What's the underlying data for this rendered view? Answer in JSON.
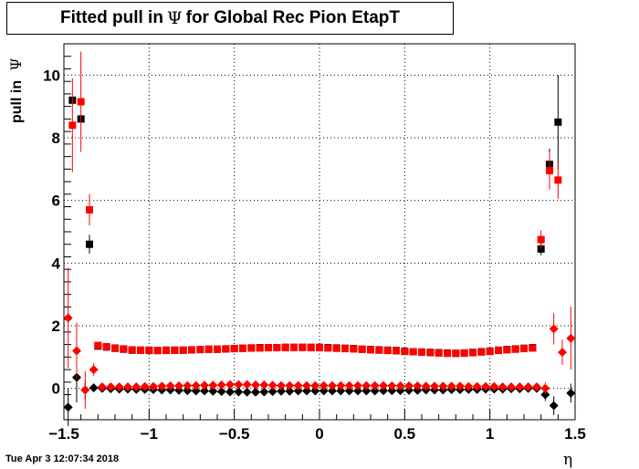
{
  "chart_data": {
    "type": "scatter",
    "title_prefix": "Fitted pull in",
    "title_symbol": "Ψ",
    "title_suffix": "for Global Rec Pion EtapT",
    "ylabel_prefix": "pull in",
    "ylabel_symbol": "Ψ",
    "xlabel": "η",
    "xlim": [
      -1.5,
      1.5
    ],
    "ylim": [
      -1.0,
      11.0
    ],
    "x_ticks": [
      -1.5,
      -1,
      -0.5,
      0,
      0.5,
      1,
      1.5
    ],
    "x_tick_labels": [
      "−1.5",
      "−1",
      "−0.5",
      "0",
      "0.5",
      "1",
      "1.5"
    ],
    "y_ticks": [
      0,
      2,
      4,
      6,
      8,
      10
    ],
    "y_tick_labels": [
      "0",
      "2",
      "4",
      "6",
      "8",
      "10"
    ],
    "grid": true,
    "timestamp": "Tue Apr  3 12:07:34 2018",
    "series": [
      {
        "color": "#000000",
        "marker": "square",
        "points": [
          [
            -1.45,
            9.2,
            0.0
          ],
          [
            -1.4,
            8.6,
            0.0
          ],
          [
            -1.35,
            4.6,
            0.3
          ],
          [
            -1.3,
            1.35,
            0.03
          ],
          [
            -1.25,
            1.32,
            0.03
          ],
          [
            -1.2,
            1.28,
            0.03
          ],
          [
            -1.15,
            1.25,
            0.03
          ],
          [
            -1.1,
            1.22,
            0.03
          ],
          [
            -1.05,
            1.22,
            0.03
          ],
          [
            -1.0,
            1.22,
            0.03
          ],
          [
            -0.95,
            1.21,
            0.03
          ],
          [
            -0.9,
            1.22,
            0.03
          ],
          [
            -0.85,
            1.22,
            0.03
          ],
          [
            -0.8,
            1.22,
            0.03
          ],
          [
            -0.75,
            1.23,
            0.03
          ],
          [
            -0.7,
            1.24,
            0.03
          ],
          [
            -0.65,
            1.25,
            0.03
          ],
          [
            -0.6,
            1.25,
            0.03
          ],
          [
            -0.55,
            1.26,
            0.03
          ],
          [
            -0.5,
            1.27,
            0.03
          ],
          [
            -0.45,
            1.28,
            0.03
          ],
          [
            -0.4,
            1.29,
            0.03
          ],
          [
            -0.35,
            1.3,
            0.03
          ],
          [
            -0.3,
            1.3,
            0.03
          ],
          [
            -0.25,
            1.3,
            0.03
          ],
          [
            -0.2,
            1.31,
            0.03
          ],
          [
            -0.15,
            1.31,
            0.03
          ],
          [
            -0.1,
            1.31,
            0.03
          ],
          [
            -0.05,
            1.31,
            0.03
          ],
          [
            0.0,
            1.31,
            0.03
          ],
          [
            0.05,
            1.3,
            0.03
          ],
          [
            0.1,
            1.29,
            0.03
          ],
          [
            0.15,
            1.28,
            0.03
          ],
          [
            0.2,
            1.27,
            0.03
          ],
          [
            0.25,
            1.25,
            0.03
          ],
          [
            0.3,
            1.24,
            0.03
          ],
          [
            0.35,
            1.23,
            0.03
          ],
          [
            0.4,
            1.22,
            0.03
          ],
          [
            0.45,
            1.21,
            0.03
          ],
          [
            0.5,
            1.19,
            0.03
          ],
          [
            0.55,
            1.17,
            0.03
          ],
          [
            0.6,
            1.16,
            0.03
          ],
          [
            0.65,
            1.15,
            0.03
          ],
          [
            0.7,
            1.14,
            0.03
          ],
          [
            0.75,
            1.13,
            0.03
          ],
          [
            0.8,
            1.12,
            0.03
          ],
          [
            0.85,
            1.13,
            0.03
          ],
          [
            0.9,
            1.15,
            0.03
          ],
          [
            0.95,
            1.17,
            0.03
          ],
          [
            1.0,
            1.19,
            0.03
          ],
          [
            1.05,
            1.22,
            0.03
          ],
          [
            1.1,
            1.24,
            0.03
          ],
          [
            1.15,
            1.26,
            0.03
          ],
          [
            1.2,
            1.28,
            0.03
          ],
          [
            1.25,
            1.3,
            0.03
          ],
          [
            1.3,
            4.45,
            0.2
          ],
          [
            1.35,
            7.15,
            0.5
          ],
          [
            1.4,
            8.5,
            1.5
          ]
        ]
      },
      {
        "color": "#ff0000",
        "marker": "square",
        "points": [
          [
            -1.45,
            8.4,
            1.5
          ],
          [
            -1.4,
            9.15,
            1.6
          ],
          [
            -1.35,
            5.7,
            0.5
          ],
          [
            -1.3,
            1.37,
            0.03
          ],
          [
            -1.25,
            1.33,
            0.03
          ],
          [
            -1.2,
            1.29,
            0.03
          ],
          [
            -1.15,
            1.26,
            0.03
          ],
          [
            -1.1,
            1.23,
            0.03
          ],
          [
            -1.05,
            1.22,
            0.03
          ],
          [
            -1.0,
            1.21,
            0.03
          ],
          [
            -0.95,
            1.21,
            0.03
          ],
          [
            -0.9,
            1.21,
            0.03
          ],
          [
            -0.85,
            1.22,
            0.03
          ],
          [
            -0.8,
            1.22,
            0.03
          ],
          [
            -0.75,
            1.23,
            0.03
          ],
          [
            -0.7,
            1.24,
            0.03
          ],
          [
            -0.65,
            1.25,
            0.03
          ],
          [
            -0.6,
            1.25,
            0.03
          ],
          [
            -0.55,
            1.26,
            0.03
          ],
          [
            -0.5,
            1.27,
            0.03
          ],
          [
            -0.45,
            1.28,
            0.03
          ],
          [
            -0.4,
            1.29,
            0.03
          ],
          [
            -0.35,
            1.29,
            0.03
          ],
          [
            -0.3,
            1.3,
            0.03
          ],
          [
            -0.25,
            1.3,
            0.03
          ],
          [
            -0.2,
            1.3,
            0.03
          ],
          [
            -0.15,
            1.31,
            0.03
          ],
          [
            -0.1,
            1.31,
            0.03
          ],
          [
            -0.05,
            1.3,
            0.03
          ],
          [
            0.0,
            1.3,
            0.03
          ],
          [
            0.05,
            1.29,
            0.03
          ],
          [
            0.1,
            1.28,
            0.03
          ],
          [
            0.15,
            1.27,
            0.03
          ],
          [
            0.2,
            1.26,
            0.03
          ],
          [
            0.25,
            1.25,
            0.03
          ],
          [
            0.3,
            1.23,
            0.03
          ],
          [
            0.35,
            1.22,
            0.03
          ],
          [
            0.4,
            1.21,
            0.03
          ],
          [
            0.45,
            1.2,
            0.03
          ],
          [
            0.5,
            1.18,
            0.03
          ],
          [
            0.55,
            1.17,
            0.03
          ],
          [
            0.6,
            1.16,
            0.03
          ],
          [
            0.65,
            1.14,
            0.03
          ],
          [
            0.7,
            1.13,
            0.03
          ],
          [
            0.75,
            1.12,
            0.03
          ],
          [
            0.8,
            1.12,
            0.03
          ],
          [
            0.85,
            1.13,
            0.03
          ],
          [
            0.9,
            1.14,
            0.03
          ],
          [
            0.95,
            1.16,
            0.03
          ],
          [
            1.0,
            1.18,
            0.03
          ],
          [
            1.05,
            1.21,
            0.03
          ],
          [
            1.1,
            1.23,
            0.03
          ],
          [
            1.15,
            1.25,
            0.03
          ],
          [
            1.2,
            1.27,
            0.03
          ],
          [
            1.25,
            1.29,
            0.03
          ],
          [
            1.3,
            4.75,
            0.3
          ],
          [
            1.35,
            6.95,
            0.6
          ],
          [
            1.4,
            6.65,
            0.6
          ]
        ]
      },
      {
        "color": "#000000",
        "marker": "diamond",
        "points": [
          [
            -1.475,
            -0.6,
            0.6
          ],
          [
            -1.425,
            0.35,
            0.8
          ],
          [
            -1.375,
            -0.05,
            0.3
          ],
          [
            -1.325,
            0.02,
            0.05
          ],
          [
            -1.275,
            0.0,
            0.02
          ],
          [
            -1.225,
            -0.01,
            0.02
          ],
          [
            -1.175,
            -0.02,
            0.02
          ],
          [
            -1.125,
            -0.02,
            0.02
          ],
          [
            -1.075,
            -0.03,
            0.02
          ],
          [
            -1.025,
            -0.03,
            0.02
          ],
          [
            -0.975,
            -0.04,
            0.02
          ],
          [
            -0.925,
            -0.05,
            0.02
          ],
          [
            -0.875,
            -0.05,
            0.02
          ],
          [
            -0.825,
            -0.06,
            0.02
          ],
          [
            -0.775,
            -0.07,
            0.02
          ],
          [
            -0.725,
            -0.08,
            0.02
          ],
          [
            -0.675,
            -0.08,
            0.02
          ],
          [
            -0.625,
            -0.09,
            0.02
          ],
          [
            -0.575,
            -0.1,
            0.02
          ],
          [
            -0.525,
            -0.11,
            0.02
          ],
          [
            -0.475,
            -0.11,
            0.02
          ],
          [
            -0.425,
            -0.12,
            0.02
          ],
          [
            -0.375,
            -0.12,
            0.02
          ],
          [
            -0.325,
            -0.11,
            0.02
          ],
          [
            -0.275,
            -0.1,
            0.02
          ],
          [
            -0.225,
            -0.09,
            0.02
          ],
          [
            -0.175,
            -0.09,
            0.02
          ],
          [
            -0.125,
            -0.08,
            0.02
          ],
          [
            -0.075,
            -0.08,
            0.02
          ],
          [
            -0.025,
            -0.08,
            0.02
          ],
          [
            0.025,
            -0.08,
            0.02
          ],
          [
            0.075,
            -0.08,
            0.02
          ],
          [
            0.125,
            -0.08,
            0.02
          ],
          [
            0.175,
            -0.08,
            0.02
          ],
          [
            0.225,
            -0.08,
            0.02
          ],
          [
            0.275,
            -0.08,
            0.02
          ],
          [
            0.325,
            -0.08,
            0.02
          ],
          [
            0.375,
            -0.07,
            0.02
          ],
          [
            0.425,
            -0.07,
            0.02
          ],
          [
            0.475,
            -0.07,
            0.02
          ],
          [
            0.525,
            -0.06,
            0.02
          ],
          [
            0.575,
            -0.06,
            0.02
          ],
          [
            0.625,
            -0.05,
            0.02
          ],
          [
            0.675,
            -0.05,
            0.02
          ],
          [
            0.725,
            -0.05,
            0.02
          ],
          [
            0.775,
            -0.04,
            0.02
          ],
          [
            0.825,
            -0.04,
            0.02
          ],
          [
            0.875,
            -0.03,
            0.02
          ],
          [
            0.925,
            -0.03,
            0.02
          ],
          [
            0.975,
            -0.02,
            0.02
          ],
          [
            1.025,
            -0.02,
            0.02
          ],
          [
            1.075,
            -0.02,
            0.02
          ],
          [
            1.125,
            -0.01,
            0.02
          ],
          [
            1.175,
            -0.01,
            0.02
          ],
          [
            1.225,
            0.0,
            0.02
          ],
          [
            1.275,
            0.0,
            0.05
          ],
          [
            1.325,
            -0.2,
            0.2
          ],
          [
            1.375,
            -0.55,
            0.3
          ],
          [
            1.475,
            -0.15,
            0.3
          ]
        ]
      },
      {
        "color": "#ff0000",
        "marker": "diamond",
        "points": [
          [
            -1.475,
            2.25,
            1.6
          ],
          [
            -1.425,
            1.2,
            0.9
          ],
          [
            -1.375,
            -0.05,
            0.6
          ],
          [
            -1.325,
            0.6,
            0.2
          ],
          [
            -1.275,
            0.05,
            0.03
          ],
          [
            -1.225,
            0.05,
            0.02
          ],
          [
            -1.175,
            0.05,
            0.02
          ],
          [
            -1.125,
            0.05,
            0.02
          ],
          [
            -1.075,
            0.05,
            0.02
          ],
          [
            -1.025,
            0.06,
            0.02
          ],
          [
            -0.975,
            0.06,
            0.02
          ],
          [
            -0.925,
            0.07,
            0.02
          ],
          [
            -0.875,
            0.08,
            0.02
          ],
          [
            -0.825,
            0.08,
            0.02
          ],
          [
            -0.775,
            0.09,
            0.02
          ],
          [
            -0.725,
            0.09,
            0.02
          ],
          [
            -0.675,
            0.1,
            0.02
          ],
          [
            -0.625,
            0.1,
            0.02
          ],
          [
            -0.575,
            0.11,
            0.02
          ],
          [
            -0.525,
            0.12,
            0.02
          ],
          [
            -0.475,
            0.12,
            0.02
          ],
          [
            -0.425,
            0.12,
            0.02
          ],
          [
            -0.375,
            0.11,
            0.02
          ],
          [
            -0.325,
            0.11,
            0.02
          ],
          [
            -0.275,
            0.1,
            0.02
          ],
          [
            -0.225,
            0.09,
            0.02
          ],
          [
            -0.175,
            0.09,
            0.02
          ],
          [
            -0.125,
            0.09,
            0.02
          ],
          [
            -0.075,
            0.09,
            0.02
          ],
          [
            -0.025,
            0.09,
            0.02
          ],
          [
            0.025,
            0.09,
            0.02
          ],
          [
            0.075,
            0.09,
            0.02
          ],
          [
            0.125,
            0.09,
            0.02
          ],
          [
            0.175,
            0.09,
            0.02
          ],
          [
            0.225,
            0.09,
            0.02
          ],
          [
            0.275,
            0.09,
            0.02
          ],
          [
            0.325,
            0.09,
            0.02
          ],
          [
            0.375,
            0.09,
            0.02
          ],
          [
            0.425,
            0.08,
            0.02
          ],
          [
            0.475,
            0.08,
            0.02
          ],
          [
            0.525,
            0.08,
            0.02
          ],
          [
            0.575,
            0.08,
            0.02
          ],
          [
            0.625,
            0.07,
            0.02
          ],
          [
            0.675,
            0.07,
            0.02
          ],
          [
            0.725,
            0.07,
            0.02
          ],
          [
            0.775,
            0.07,
            0.02
          ],
          [
            0.825,
            0.07,
            0.02
          ],
          [
            0.875,
            0.06,
            0.02
          ],
          [
            0.925,
            0.06,
            0.02
          ],
          [
            0.975,
            0.06,
            0.02
          ],
          [
            1.025,
            0.06,
            0.02
          ],
          [
            1.075,
            0.05,
            0.02
          ],
          [
            1.125,
            0.05,
            0.02
          ],
          [
            1.175,
            0.05,
            0.02
          ],
          [
            1.225,
            0.05,
            0.02
          ],
          [
            1.275,
            0.05,
            0.03
          ],
          [
            1.325,
            0.0,
            0.2
          ],
          [
            1.375,
            1.9,
            0.5
          ],
          [
            1.425,
            1.15,
            0.4
          ],
          [
            1.475,
            1.6,
            1.0
          ]
        ]
      }
    ]
  }
}
